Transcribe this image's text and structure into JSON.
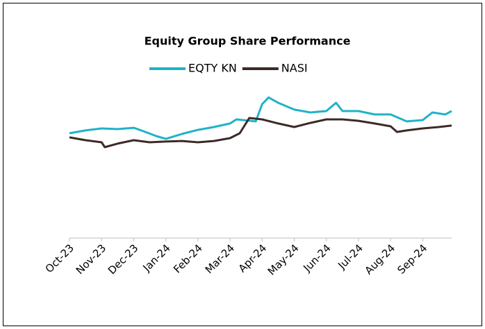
{
  "chart_data": {
    "type": "line",
    "title": "Equity Group Share Performance",
    "xlim": [
      0,
      11.9
    ],
    "xticks": [
      {
        "value": 0,
        "label": "Oct-23"
      },
      {
        "value": 1,
        "label": "Nov-23"
      },
      {
        "value": 2,
        "label": "Dec-23"
      },
      {
        "value": 3,
        "label": "Jan-24"
      },
      {
        "value": 4,
        "label": "Feb-24"
      },
      {
        "value": 5,
        "label": "Mar-24"
      },
      {
        "value": 6,
        "label": "Apr-24"
      },
      {
        "value": 7,
        "label": "May-24"
      },
      {
        "value": 8,
        "label": "Jun-24"
      },
      {
        "value": 9,
        "label": "Jul-24"
      },
      {
        "value": 10,
        "label": "Aug-24"
      },
      {
        "value": 11,
        "label": "Sep-24"
      }
    ],
    "ylim": [
      0,
      100
    ],
    "legend": "top",
    "series": [
      {
        "name": "EQTY KN",
        "color": "#1fb3c7",
        "x": [
          0,
          0.5,
          1,
          1.5,
          2,
          2.3,
          2.7,
          3,
          3.5,
          4,
          4.5,
          5,
          5.2,
          5.8,
          6,
          6.2,
          6.5,
          7,
          7.5,
          8,
          8.3,
          8.5,
          9,
          9.5,
          10,
          10.5,
          11,
          11.3,
          11.7,
          11.9
        ],
        "values": [
          70.9,
          72.8,
          74.2,
          73.7,
          74.6,
          72.3,
          69.0,
          67.1,
          70.4,
          73.2,
          75.1,
          77.5,
          80.3,
          78.9,
          90.6,
          95.1,
          91.5,
          86.9,
          85.0,
          85.9,
          91.5,
          85.9,
          85.9,
          83.6,
          83.6,
          78.9,
          79.8,
          85.0,
          83.6,
          85.9
        ]
      },
      {
        "name": "NASI",
        "color": "#3b2a26",
        "x": [
          0,
          0.5,
          1,
          1.1,
          1.5,
          2,
          2.5,
          3,
          3.5,
          4,
          4.5,
          5,
          5.3,
          5.6,
          6,
          6.5,
          7,
          7.5,
          8,
          8.5,
          9,
          9.5,
          10,
          10.2,
          10.5,
          11,
          11.5,
          11.9
        ],
        "values": [
          68.1,
          66.2,
          64.8,
          61.5,
          63.9,
          66.2,
          64.8,
          65.3,
          65.7,
          64.8,
          65.7,
          67.6,
          70.9,
          81.2,
          80.3,
          77.5,
          75.1,
          77.9,
          80.3,
          80.3,
          79.3,
          77.5,
          75.6,
          71.8,
          72.8,
          74.2,
          75.1,
          76.1
        ]
      }
    ]
  }
}
